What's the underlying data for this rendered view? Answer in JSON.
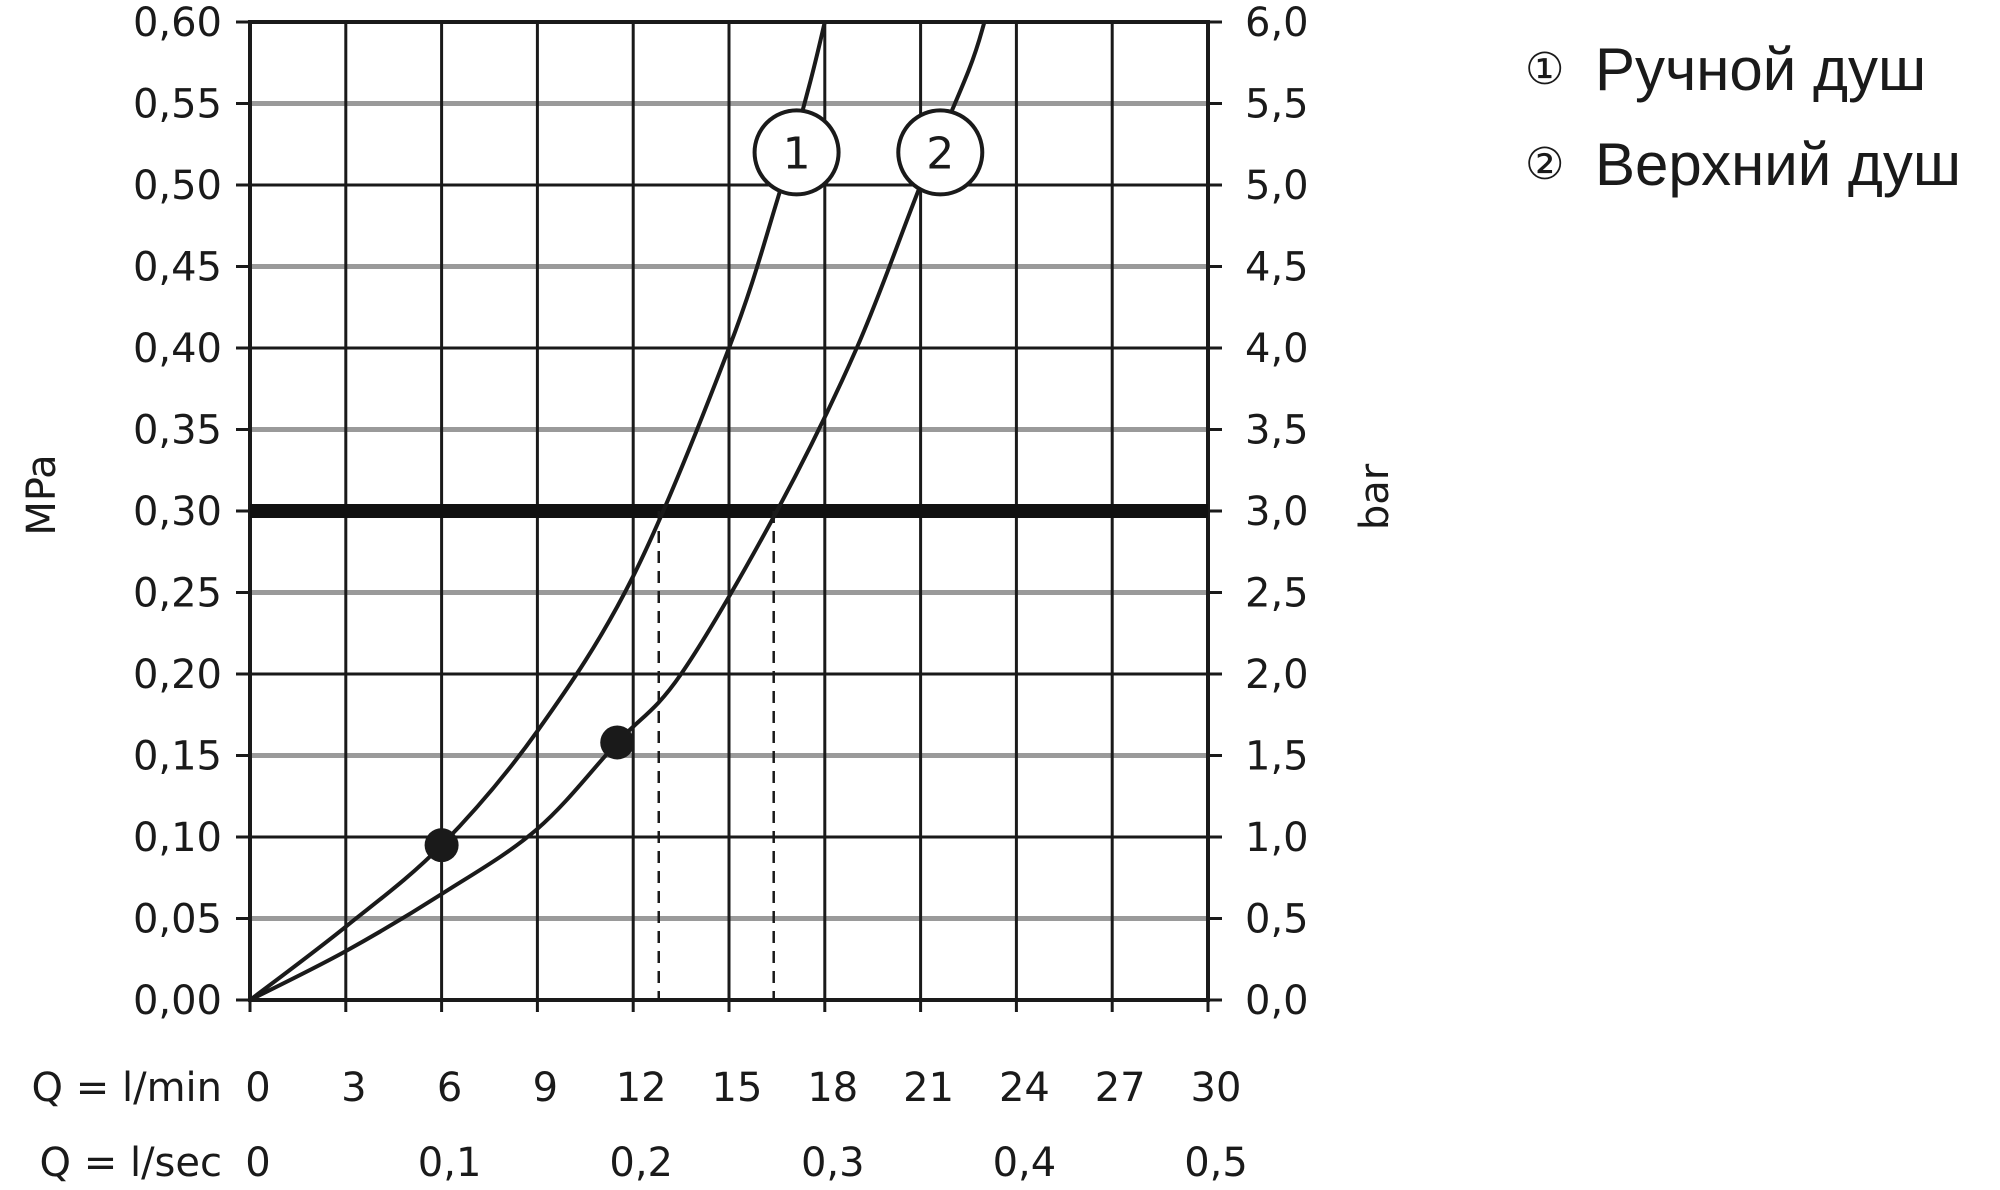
{
  "chart_data": {
    "type": "line",
    "xlabel": "Q = l/min",
    "x2label": "Q = l/sec",
    "ylabel": "MPa",
    "y2label": "bar",
    "xlim": [
      0,
      30
    ],
    "ylim": [
      0,
      0.6
    ],
    "x_ticks": [
      "0",
      "3",
      "6",
      "9",
      "12",
      "15",
      "18",
      "21",
      "24",
      "27",
      "30"
    ],
    "x2_ticks": [
      "0",
      "0,1",
      "0,2",
      "0,3",
      "0,4",
      "0,5"
    ],
    "y_ticks": [
      "0,00",
      "0,05",
      "0,10",
      "0,15",
      "0,20",
      "0,25",
      "0,30",
      "0,35",
      "0,40",
      "0,45",
      "0,50",
      "0,55",
      "0,60"
    ],
    "y2_ticks": [
      "0,0",
      "0,5",
      "1,0",
      "1,5",
      "2,0",
      "2,5",
      "3,0",
      "3,5",
      "4,0",
      "4,5",
      "5,0",
      "5,5",
      "6,0"
    ],
    "grid": true,
    "reference_line_y": 0.3,
    "series": [
      {
        "name": "Ручной душ",
        "marker_label": "1",
        "x": [
          0,
          3,
          6,
          9,
          12,
          15,
          16.5,
          17.5,
          18
        ],
        "y": [
          0,
          0.045,
          0.095,
          0.165,
          0.26,
          0.4,
          0.49,
          0.56,
          0.6
        ],
        "highlight_point": [
          6,
          0.095
        ],
        "flow_at_reference": 12.8
      },
      {
        "name": "Верхний душ",
        "marker_label": "2",
        "x": [
          0,
          3,
          6,
          9,
          11.5,
          13.5,
          16.5,
          19,
          21,
          22.5,
          23
        ],
        "y": [
          0,
          0.03,
          0.065,
          0.105,
          0.158,
          0.2,
          0.3,
          0.4,
          0.5,
          0.57,
          0.6
        ],
        "highlight_point": [
          11.5,
          0.158
        ],
        "flow_at_reference": 16.4
      }
    ],
    "legend": [
      {
        "marker": "①",
        "label": "Ручной душ"
      },
      {
        "marker": "②",
        "label": "Верхний душ"
      }
    ],
    "legend_position": "top-right"
  }
}
